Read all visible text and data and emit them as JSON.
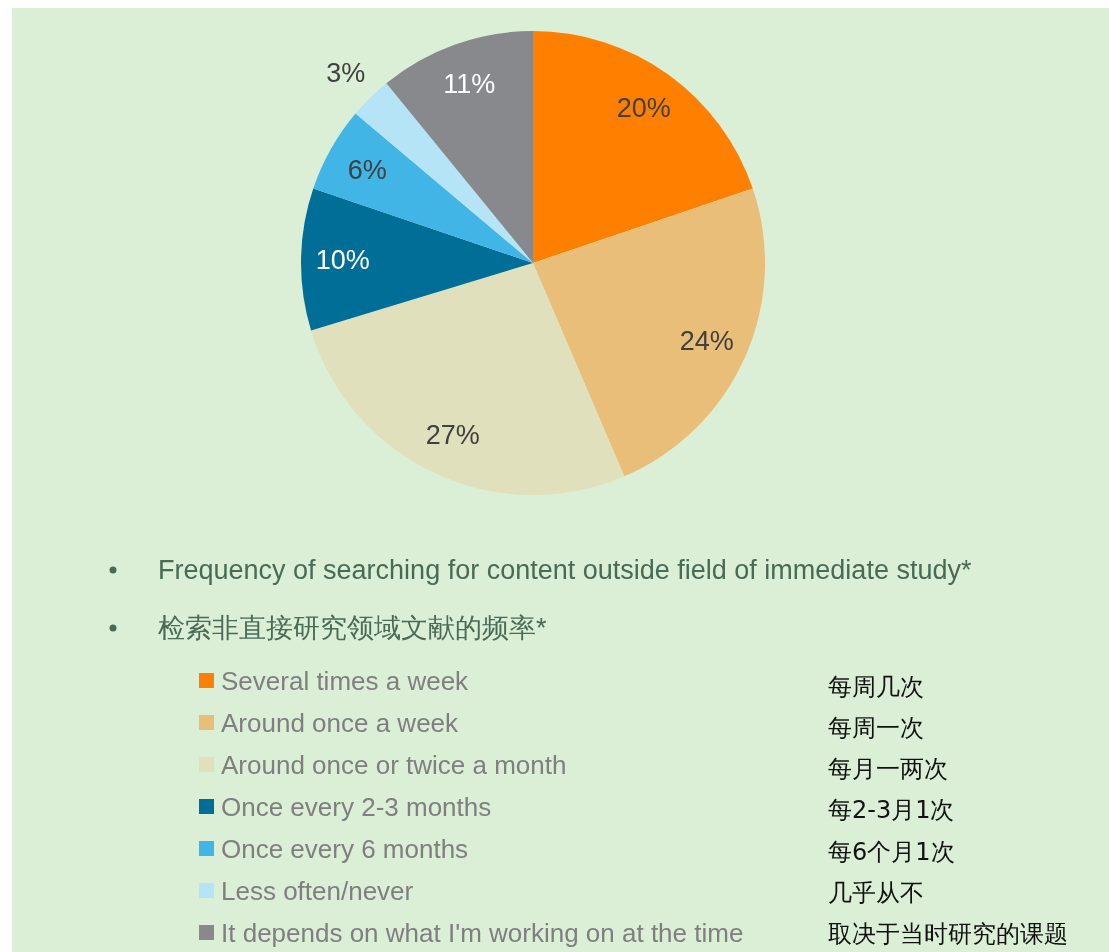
{
  "chart_data": {
    "type": "pie",
    "title": "Frequency of searching for content outside field of immediate study*",
    "subtitle": "检索非直接研究领域文献的频率*",
    "categories": [
      "Several times a week",
      "Around once a week",
      "Around once or twice a month",
      "Once every 2-3 months",
      "Once every 6 months",
      "Less often/never",
      "It depends on what I'm working on at the time"
    ],
    "values": [
      20,
      24,
      27,
      10,
      6,
      3,
      11
    ],
    "value_labels": [
      "20%",
      "24%",
      "27%",
      "10%",
      "6%",
      "3%",
      "11%"
    ],
    "colors": [
      "#ff8000",
      "#e9be78",
      "#e0e0bc",
      "#006e96",
      "#41b5e6",
      "#b4e4f5",
      "#87898c"
    ],
    "legend": "bottom",
    "annotations": [
      "每周几次",
      "每周一次",
      "每月一两次",
      "每2-3月1次",
      "每6个月1次",
      "几乎从不",
      "取决于当时研究的课题"
    ]
  }
}
